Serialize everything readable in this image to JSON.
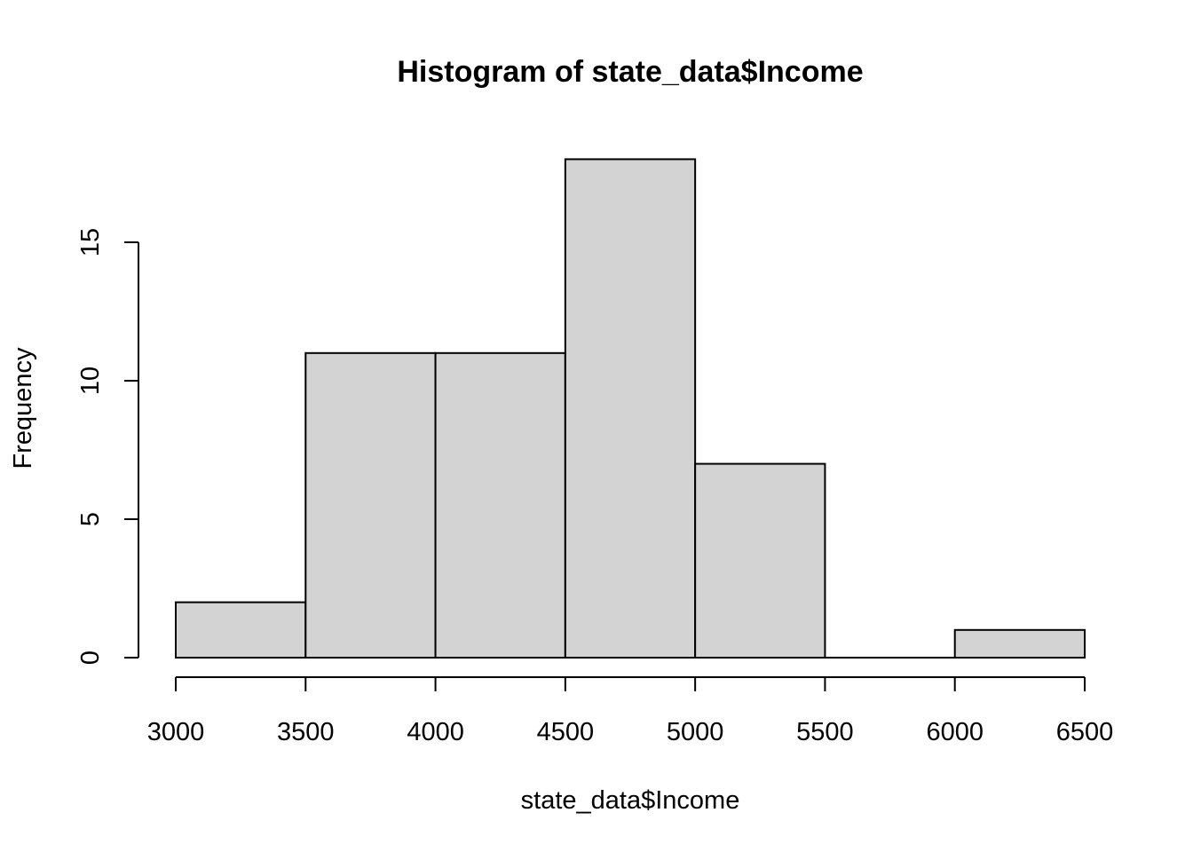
{
  "chart_data": {
    "type": "bar",
    "title": "Histogram of state_data$Income",
    "xlabel": "state_data$Income",
    "ylabel": "Frequency",
    "bins": [
      {
        "start": 3000,
        "end": 3500,
        "count": 2
      },
      {
        "start": 3500,
        "end": 4000,
        "count": 11
      },
      {
        "start": 4000,
        "end": 4500,
        "count": 11
      },
      {
        "start": 4500,
        "end": 5000,
        "count": 18
      },
      {
        "start": 5000,
        "end": 5500,
        "count": 7
      },
      {
        "start": 5500,
        "end": 6000,
        "count": 0
      },
      {
        "start": 6000,
        "end": 6500,
        "count": 1
      }
    ],
    "xlim": [
      3000,
      6500
    ],
    "ylim": [
      0,
      18
    ],
    "x_ticks": [
      "3000",
      "3500",
      "4000",
      "4500",
      "5000",
      "5500",
      "6000",
      "6500"
    ],
    "y_ticks": [
      "0",
      "5",
      "10",
      "15"
    ],
    "bar_color": "#d3d3d3",
    "grid": false
  }
}
